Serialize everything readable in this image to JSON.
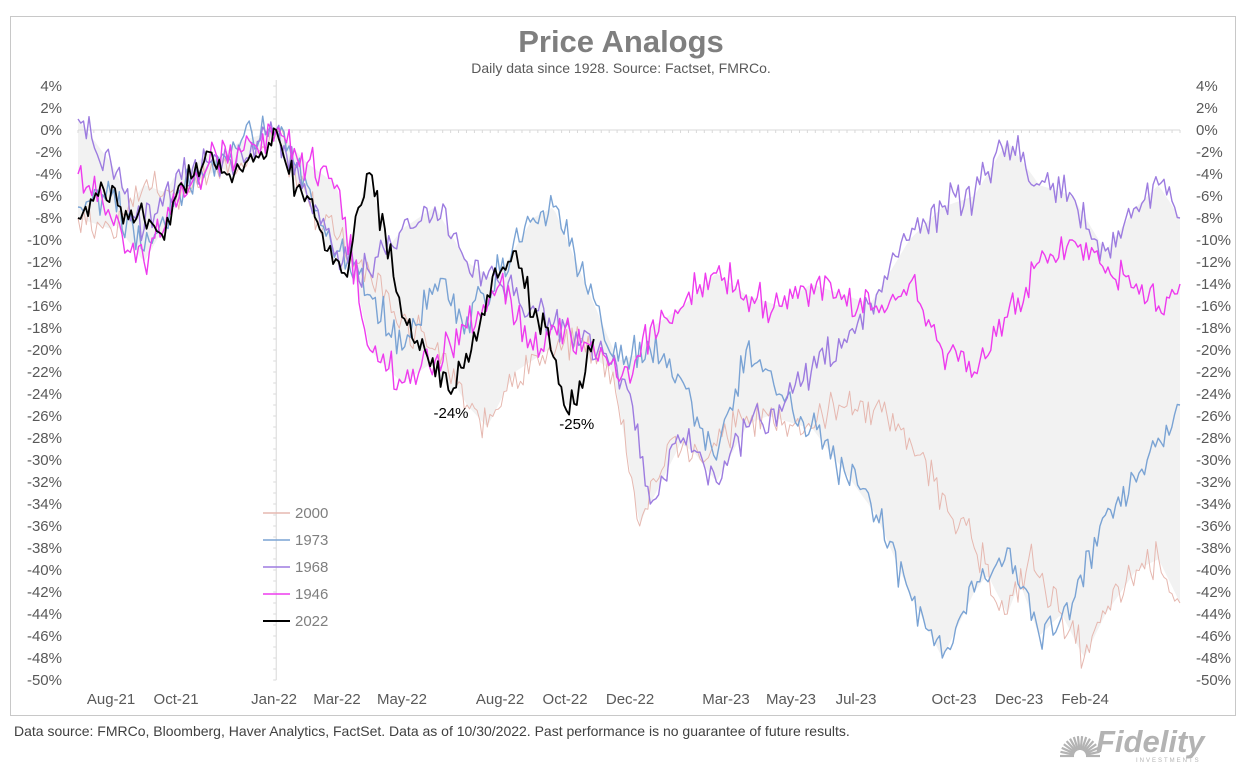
{
  "chart_data": {
    "type": "line",
    "title": "Price Analogs",
    "subtitle": "Daily data since 1928.  Source: Factset, FMRCo.",
    "x_tick_labels": [
      "Aug-21",
      "Oct-21",
      "Jan-22",
      "Mar-22",
      "May-22",
      "Aug-22",
      "Oct-22",
      "Dec-22",
      "Mar-23",
      "May-23",
      "Jul-23",
      "Oct-23",
      "Dec-23",
      "Feb-24"
    ],
    "x_tick_dates": [
      "2021-08-01",
      "2021-10-01",
      "2022-01-01",
      "2022-03-01",
      "2022-05-01",
      "2022-08-01",
      "2022-10-01",
      "2022-12-01",
      "2023-03-01",
      "2023-05-01",
      "2023-07-01",
      "2023-10-01",
      "2023-12-01",
      "2024-02-01"
    ],
    "x_range": [
      "2021-07-01",
      "2024-04-30"
    ],
    "peak_date": "2022-01-03",
    "y_tick_labels": [
      "4%",
      "2%",
      "0%",
      "-2%",
      "-4%",
      "-6%",
      "-8%",
      "-10%",
      "-12%",
      "-14%",
      "-16%",
      "-18%",
      "-20%",
      "-22%",
      "-24%",
      "-26%",
      "-28%",
      "-30%",
      "-32%",
      "-34%",
      "-36%",
      "-38%",
      "-40%",
      "-42%",
      "-44%",
      "-46%",
      "-48%",
      "-50%"
    ],
    "ylim": [
      -50,
      4
    ],
    "y_unit": "%",
    "grid": false,
    "shaded_band": "range between series minimum and maximum",
    "legend_position": "bottom-left",
    "series": [
      {
        "name": "2000",
        "color": "#e6b8b0",
        "points": [
          [
            "2021-07-01",
            -8
          ],
          [
            "2021-08-01",
            -9
          ],
          [
            "2021-09-01",
            -5
          ],
          [
            "2021-10-01",
            -6
          ],
          [
            "2021-11-01",
            -4
          ],
          [
            "2021-12-01",
            -3
          ],
          [
            "2022-01-03",
            0
          ],
          [
            "2022-02-01",
            -6
          ],
          [
            "2022-03-01",
            -10
          ],
          [
            "2022-04-01",
            -13
          ],
          [
            "2022-05-01",
            -17
          ],
          [
            "2022-06-01",
            -20
          ],
          [
            "2022-07-01",
            -25
          ],
          [
            "2022-07-20",
            -27
          ],
          [
            "2022-08-15",
            -22
          ],
          [
            "2022-09-15",
            -20
          ],
          [
            "2022-10-15",
            -19
          ],
          [
            "2022-11-15",
            -22
          ],
          [
            "2022-12-10",
            -36
          ],
          [
            "2023-01-10",
            -28
          ],
          [
            "2023-02-10",
            -30
          ],
          [
            "2023-03-10",
            -27
          ],
          [
            "2023-04-10",
            -26
          ],
          [
            "2023-05-15",
            -27
          ],
          [
            "2023-06-15",
            -25
          ],
          [
            "2023-07-20",
            -25
          ],
          [
            "2023-08-20",
            -28
          ],
          [
            "2023-09-20",
            -33
          ],
          [
            "2023-10-20",
            -38
          ],
          [
            "2023-11-20",
            -44
          ],
          [
            "2023-12-10",
            -39
          ],
          [
            "2024-01-10",
            -44
          ],
          [
            "2024-01-31",
            -48
          ],
          [
            "2024-02-20",
            -44
          ],
          [
            "2024-03-20",
            -40
          ],
          [
            "2024-04-10",
            -39
          ],
          [
            "2024-04-30",
            -43
          ]
        ]
      },
      {
        "name": "1973",
        "color": "#7aa3d4",
        "points": [
          [
            "2021-07-01",
            -7
          ],
          [
            "2021-08-01",
            -6
          ],
          [
            "2021-09-01",
            -11
          ],
          [
            "2021-10-01",
            -6
          ],
          [
            "2021-11-01",
            -3
          ],
          [
            "2021-12-01",
            -1
          ],
          [
            "2022-01-03",
            0
          ],
          [
            "2022-02-01",
            -5
          ],
          [
            "2022-03-01",
            -11
          ],
          [
            "2022-04-01",
            -15
          ],
          [
            "2022-05-01",
            -20
          ],
          [
            "2022-06-01",
            -14
          ],
          [
            "2022-07-01",
            -17
          ],
          [
            "2022-08-01",
            -13
          ],
          [
            "2022-09-01",
            -8
          ],
          [
            "2022-09-20",
            -7
          ],
          [
            "2022-10-20",
            -14
          ],
          [
            "2022-11-20",
            -21
          ],
          [
            "2022-12-20",
            -20
          ],
          [
            "2023-01-20",
            -23
          ],
          [
            "2023-02-20",
            -30
          ],
          [
            "2023-03-20",
            -20
          ],
          [
            "2023-04-20",
            -24
          ],
          [
            "2023-05-20",
            -27
          ],
          [
            "2023-06-20",
            -31
          ],
          [
            "2023-07-20",
            -35
          ],
          [
            "2023-08-20",
            -42
          ],
          [
            "2023-09-20",
            -48
          ],
          [
            "2023-10-20",
            -42
          ],
          [
            "2023-11-20",
            -38
          ],
          [
            "2023-12-20",
            -46
          ],
          [
            "2024-01-20",
            -43
          ],
          [
            "2024-02-20",
            -35
          ],
          [
            "2024-03-20",
            -32
          ],
          [
            "2024-04-30",
            -25
          ]
        ]
      },
      {
        "name": "1968",
        "color": "#9d7ce0",
        "points": [
          [
            "2021-07-01",
            1
          ],
          [
            "2021-08-01",
            -3
          ],
          [
            "2021-09-01",
            -9
          ],
          [
            "2021-10-01",
            -4
          ],
          [
            "2021-11-01",
            -3
          ],
          [
            "2021-12-01",
            -2
          ],
          [
            "2022-01-03",
            0
          ],
          [
            "2022-02-01",
            -6
          ],
          [
            "2022-03-01",
            -11
          ],
          [
            "2022-04-01",
            -13
          ],
          [
            "2022-05-01",
            -9
          ],
          [
            "2022-06-01",
            -7
          ],
          [
            "2022-07-01",
            -12
          ],
          [
            "2022-08-01",
            -14
          ],
          [
            "2022-09-01",
            -16
          ],
          [
            "2022-10-01",
            -18
          ],
          [
            "2022-11-01",
            -20
          ],
          [
            "2022-12-01",
            -24
          ],
          [
            "2022-12-20",
            -34
          ],
          [
            "2023-01-20",
            -28
          ],
          [
            "2023-02-20",
            -32
          ],
          [
            "2023-03-20",
            -27
          ],
          [
            "2023-04-20",
            -25
          ],
          [
            "2023-05-20",
            -22
          ],
          [
            "2023-06-20",
            -19
          ],
          [
            "2023-07-20",
            -15
          ],
          [
            "2023-08-20",
            -10
          ],
          [
            "2023-09-20",
            -7
          ],
          [
            "2023-10-20",
            -6
          ],
          [
            "2023-11-20",
            -1
          ],
          [
            "2023-12-20",
            -5
          ],
          [
            "2024-01-20",
            -6
          ],
          [
            "2024-02-20",
            -11
          ],
          [
            "2024-03-20",
            -7
          ],
          [
            "2024-04-10",
            -5
          ],
          [
            "2024-04-30",
            -8
          ]
        ]
      },
      {
        "name": "1946",
        "color": "#ee3bee",
        "points": [
          [
            "2021-07-01",
            -4
          ],
          [
            "2021-08-01",
            -8
          ],
          [
            "2021-09-01",
            -12
          ],
          [
            "2021-10-01",
            -7
          ],
          [
            "2021-11-01",
            -3
          ],
          [
            "2021-12-01",
            -2
          ],
          [
            "2022-01-03",
            0
          ],
          [
            "2022-02-01",
            -3
          ],
          [
            "2022-03-01",
            -5
          ],
          [
            "2022-04-01",
            -20
          ],
          [
            "2022-05-01",
            -23
          ],
          [
            "2022-06-01",
            -21
          ],
          [
            "2022-07-01",
            -18
          ],
          [
            "2022-08-01",
            -14
          ],
          [
            "2022-09-01",
            -20
          ],
          [
            "2022-10-01",
            -18
          ],
          [
            "2022-11-01",
            -21
          ],
          [
            "2022-12-01",
            -23
          ],
          [
            "2022-12-20",
            -18
          ],
          [
            "2023-01-20",
            -16
          ],
          [
            "2023-02-20",
            -13
          ],
          [
            "2023-03-20",
            -15
          ],
          [
            "2023-04-20",
            -16
          ],
          [
            "2023-05-20",
            -14
          ],
          [
            "2023-06-20",
            -15
          ],
          [
            "2023-07-20",
            -16
          ],
          [
            "2023-08-20",
            -14
          ],
          [
            "2023-09-20",
            -20
          ],
          [
            "2023-10-20",
            -22
          ],
          [
            "2023-11-20",
            -17
          ],
          [
            "2023-12-20",
            -12
          ],
          [
            "2024-01-20",
            -10
          ],
          [
            "2024-02-20",
            -13
          ],
          [
            "2024-03-20",
            -14
          ],
          [
            "2024-04-10",
            -16
          ],
          [
            "2024-04-30",
            -14
          ]
        ]
      },
      {
        "name": "2022",
        "color": "#000000",
        "points": [
          [
            "2021-07-01",
            -8
          ],
          [
            "2021-07-20",
            -6
          ],
          [
            "2021-08-10",
            -7
          ],
          [
            "2021-09-01",
            -8
          ],
          [
            "2021-09-20",
            -10
          ],
          [
            "2021-10-01",
            -6
          ],
          [
            "2021-10-20",
            -3
          ],
          [
            "2021-11-01",
            -2
          ],
          [
            "2021-11-20",
            -4
          ],
          [
            "2021-12-05",
            -3
          ],
          [
            "2021-12-20",
            -2
          ],
          [
            "2022-01-03",
            0
          ],
          [
            "2022-01-15",
            -4
          ],
          [
            "2022-02-01",
            -6
          ],
          [
            "2022-02-20",
            -11
          ],
          [
            "2022-03-08",
            -13
          ],
          [
            "2022-03-29",
            -4
          ],
          [
            "2022-04-15",
            -9
          ],
          [
            "2022-05-01",
            -17
          ],
          [
            "2022-05-20",
            -19
          ],
          [
            "2022-06-16",
            -24
          ],
          [
            "2022-07-05",
            -20
          ],
          [
            "2022-07-20",
            -15
          ],
          [
            "2022-08-16",
            -11
          ],
          [
            "2022-09-01",
            -17
          ],
          [
            "2022-09-15",
            -18
          ],
          [
            "2022-09-30",
            -25
          ],
          [
            "2022-10-12",
            -25
          ],
          [
            "2022-10-20",
            -22
          ],
          [
            "2022-10-28",
            -19
          ]
        ]
      }
    ],
    "annotations": [
      {
        "text": "-24%",
        "date": "2022-06-16",
        "value": -24
      },
      {
        "text": "-25%",
        "date": "2022-10-12",
        "value": -25
      }
    ]
  },
  "footer": {
    "source_note": "Data source: FMRCo, Bloomberg, Haver Analytics, FactSet. Data as of 10/30/2022. Past performance is no guarantee of future results."
  },
  "brand": {
    "name": "Fidelity",
    "tagline": "INVESTMENTS",
    "color": "#b3b3b3"
  }
}
